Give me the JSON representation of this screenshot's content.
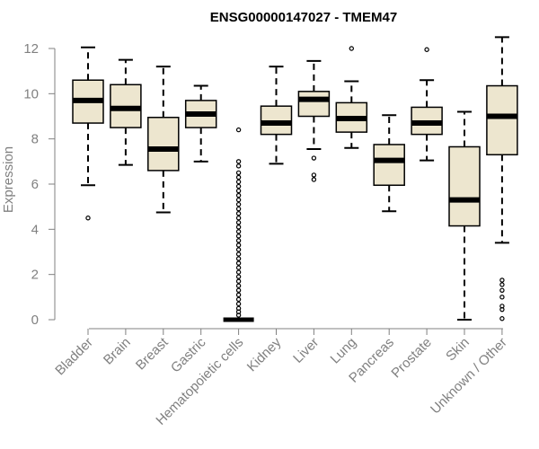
{
  "chart_data": {
    "type": "boxplot",
    "title": "ENSG00000147027 - TMEM47",
    "xlabel": "",
    "ylabel": "Expression",
    "ylim": [
      0,
      12
    ],
    "yticks": [
      0,
      2,
      4,
      6,
      8,
      10,
      12
    ],
    "colors": {
      "box_fill": "#ede6cf",
      "stroke": "#000000",
      "axis": "#808080"
    },
    "categories": [
      "Bladder",
      "Brain",
      "Breast",
      "Gastric",
      "Hematopoietic cells",
      "Kidney",
      "Liver",
      "Lung",
      "Pancreas",
      "Prostate",
      "Skin",
      "Unknown / Other"
    ],
    "boxes": [
      {
        "category": "Bladder",
        "min": 5.95,
        "q1": 8.7,
        "median": 9.7,
        "q3": 10.6,
        "max": 12.05,
        "outliers": [
          4.5
        ]
      },
      {
        "category": "Brain",
        "min": 6.85,
        "q1": 8.5,
        "median": 9.35,
        "q3": 10.4,
        "max": 11.5,
        "outliers": []
      },
      {
        "category": "Breast",
        "min": 4.75,
        "q1": 6.6,
        "median": 7.55,
        "q3": 8.95,
        "max": 11.2,
        "outliers": []
      },
      {
        "category": "Gastric",
        "min": 7.0,
        "q1": 8.5,
        "median": 9.1,
        "q3": 9.7,
        "max": 10.35,
        "outliers": []
      },
      {
        "category": "Hematopoietic cells",
        "min": 0.0,
        "q1": 0.0,
        "median": 0.0,
        "q3": 0.0,
        "max": 0.0,
        "outliers": [
          8.4,
          7.0,
          6.8,
          6.5,
          6.3,
          6.1,
          5.9,
          5.7,
          5.5,
          5.3,
          5.1,
          4.9,
          4.7,
          4.5,
          4.3,
          4.1,
          3.9,
          3.7,
          3.5,
          3.3,
          3.1,
          2.9,
          2.7,
          2.5,
          2.3,
          2.1,
          1.9,
          1.7,
          1.5,
          1.3,
          1.1,
          0.9,
          0.7,
          0.5,
          0.35,
          0.2
        ]
      },
      {
        "category": "Kidney",
        "min": 6.9,
        "q1": 8.2,
        "median": 8.7,
        "q3": 9.45,
        "max": 11.2,
        "outliers": []
      },
      {
        "category": "Liver",
        "min": 7.55,
        "q1": 9.0,
        "median": 9.75,
        "q3": 10.1,
        "max": 11.45,
        "outliers": [
          7.15,
          6.4,
          6.2
        ]
      },
      {
        "category": "Lung",
        "min": 7.6,
        "q1": 8.3,
        "median": 8.9,
        "q3": 9.6,
        "max": 10.55,
        "outliers": [
          12.0
        ]
      },
      {
        "category": "Pancreas",
        "min": 4.8,
        "q1": 5.95,
        "median": 7.05,
        "q3": 7.75,
        "max": 9.05,
        "outliers": []
      },
      {
        "category": "Prostate",
        "min": 7.05,
        "q1": 8.2,
        "median": 8.7,
        "q3": 9.4,
        "max": 10.6,
        "outliers": [
          11.95
        ]
      },
      {
        "category": "Skin",
        "min": 0.0,
        "q1": 4.15,
        "median": 5.3,
        "q3": 7.65,
        "max": 9.2,
        "outliers": []
      },
      {
        "category": "Unknown / Other",
        "min": 3.4,
        "q1": 7.3,
        "median": 9.0,
        "q3": 10.35,
        "max": 12.5,
        "outliers": [
          1.75,
          1.55,
          1.3,
          1.0,
          0.6,
          0.45,
          0.05
        ]
      }
    ]
  }
}
